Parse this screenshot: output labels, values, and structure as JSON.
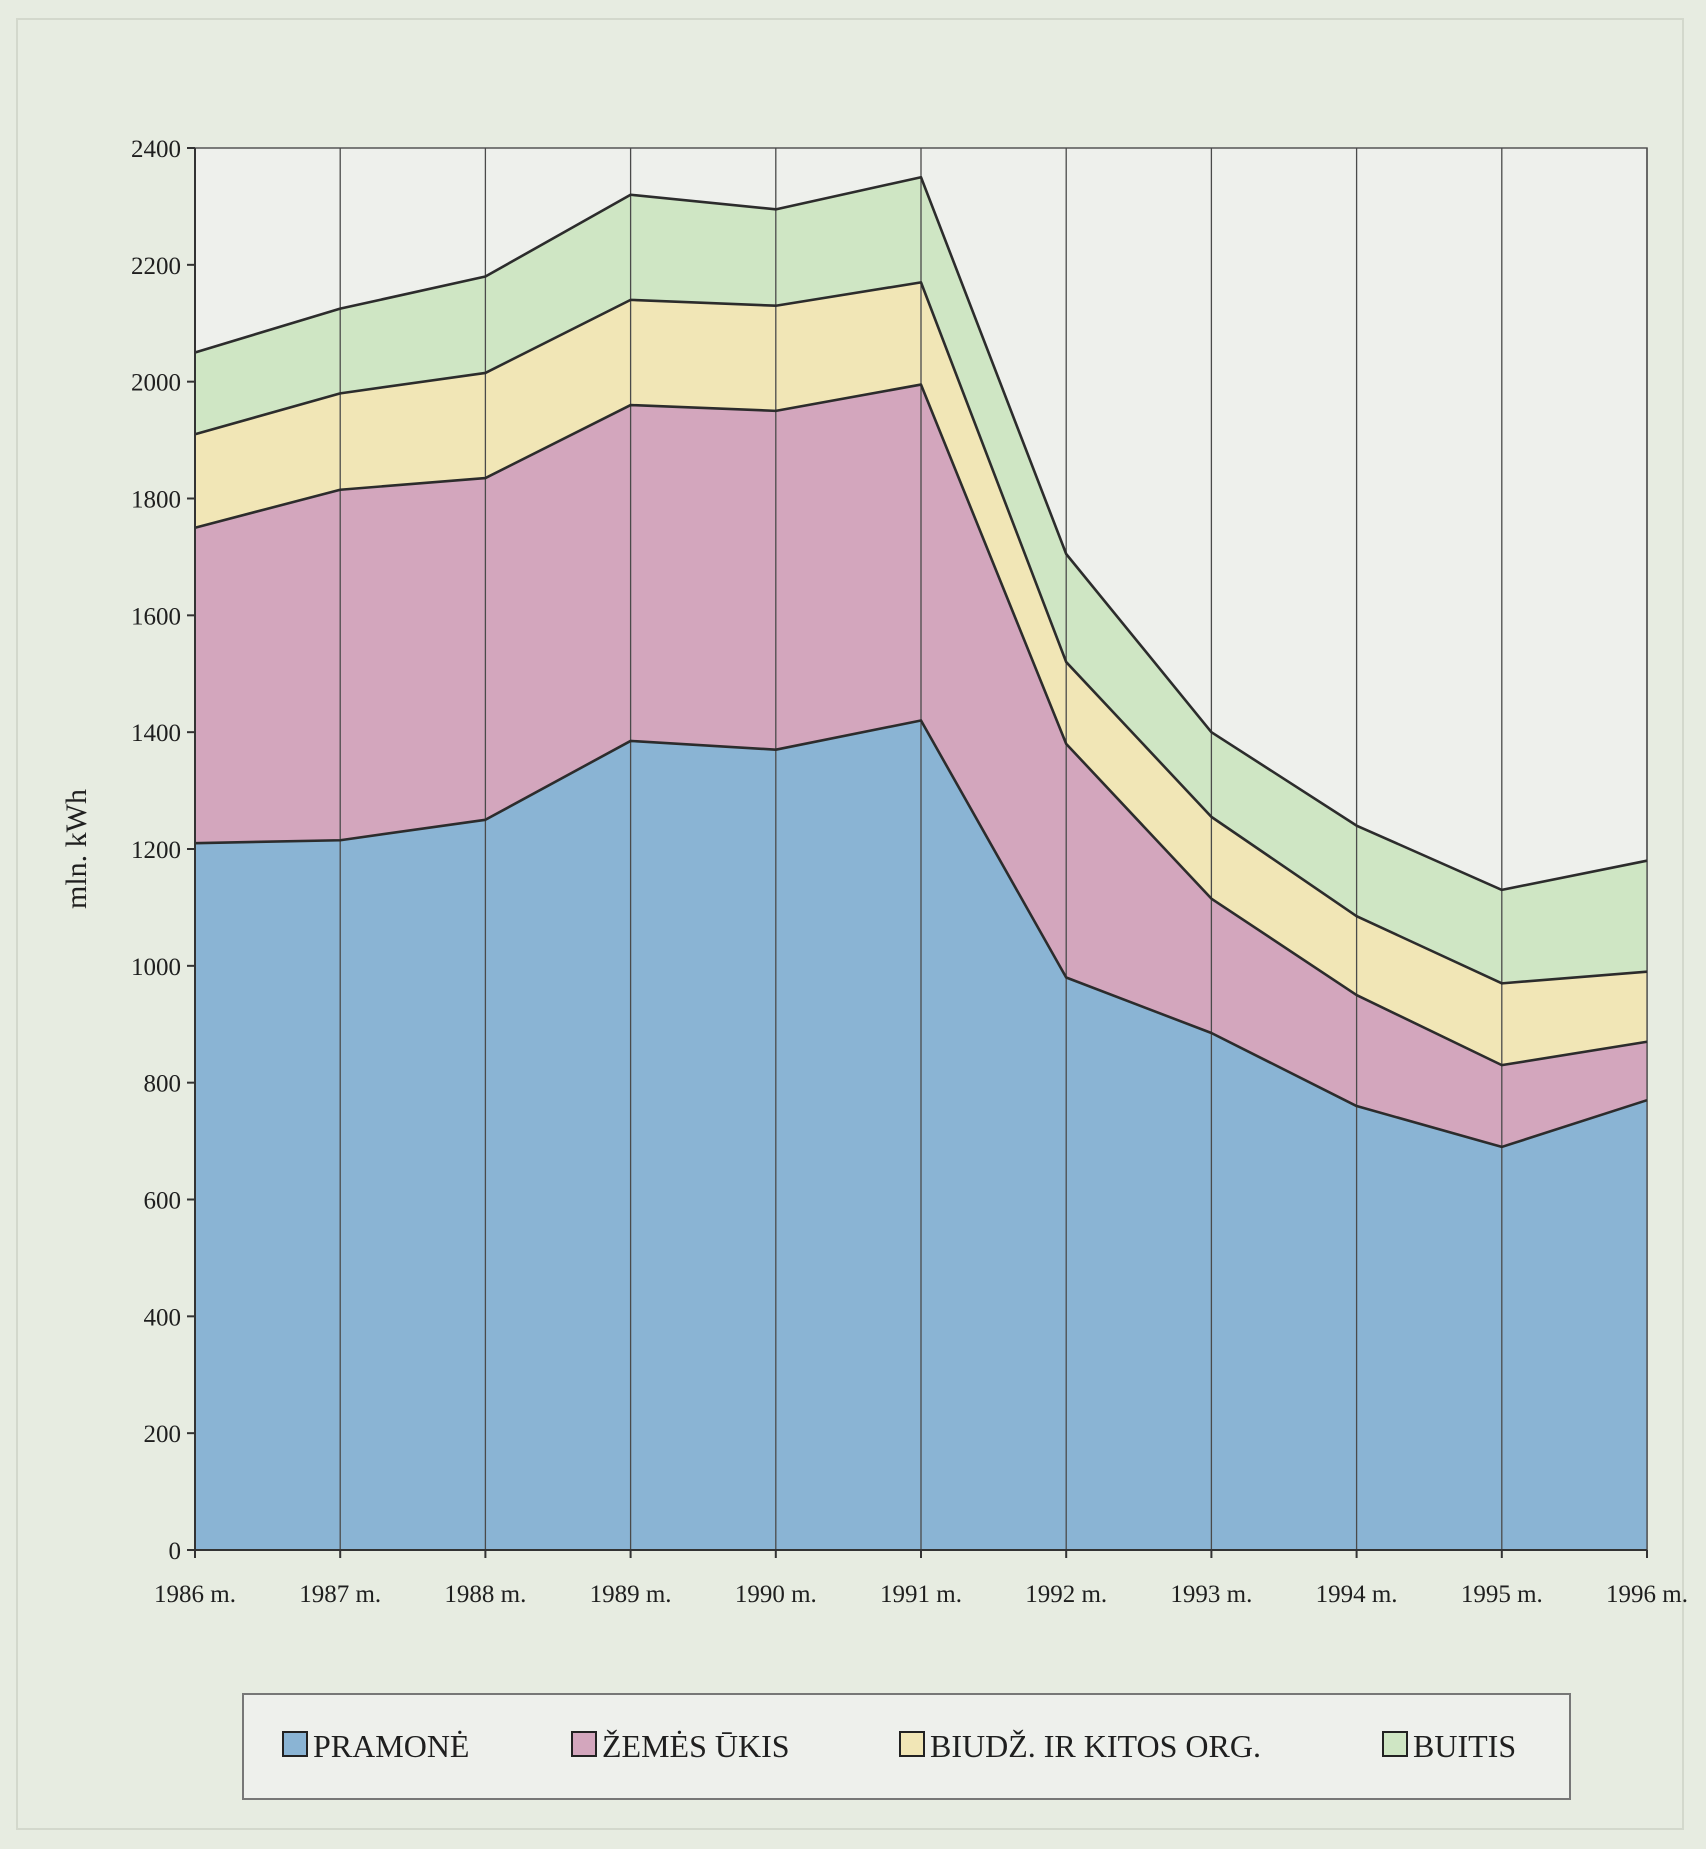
{
  "chart_data": {
    "type": "area",
    "stacked": true,
    "title": "",
    "xlabel": "",
    "ylabel": "mln. kWh",
    "ylim": [
      0,
      2400
    ],
    "yticks": [
      0,
      200,
      400,
      600,
      800,
      1000,
      1200,
      1400,
      1600,
      1800,
      2000,
      2200,
      2400
    ],
    "grid": "vertical lines at each year",
    "legend_position": "bottom",
    "categories": [
      "1986 m.",
      "1987 m.",
      "1988 m.",
      "1989 m.",
      "1990 m.",
      "1991 m.",
      "1992 m.",
      "1993 m.",
      "1994 m.",
      "1995 m.",
      "1996 m."
    ],
    "series": [
      {
        "name": "PRAMONĖ",
        "color": "#8ab4d4",
        "values": [
          1210,
          1215,
          1250,
          1385,
          1370,
          1420,
          980,
          885,
          760,
          690,
          770
        ]
      },
      {
        "name": "ŽEMĖS ŪKIS",
        "color": "#d3a6bd",
        "values": [
          540,
          600,
          585,
          575,
          580,
          575,
          400,
          230,
          190,
          140,
          100
        ]
      },
      {
        "name": "BIUDŽ. IR KITOS ORG.",
        "color": "#f1e6b6",
        "values": [
          160,
          165,
          180,
          180,
          180,
          175,
          140,
          140,
          135,
          140,
          120
        ]
      },
      {
        "name": "BUITIS",
        "color": "#cfe6c4",
        "values": [
          140,
          145,
          165,
          180,
          165,
          180,
          185,
          145,
          155,
          160,
          190
        ]
      }
    ]
  }
}
